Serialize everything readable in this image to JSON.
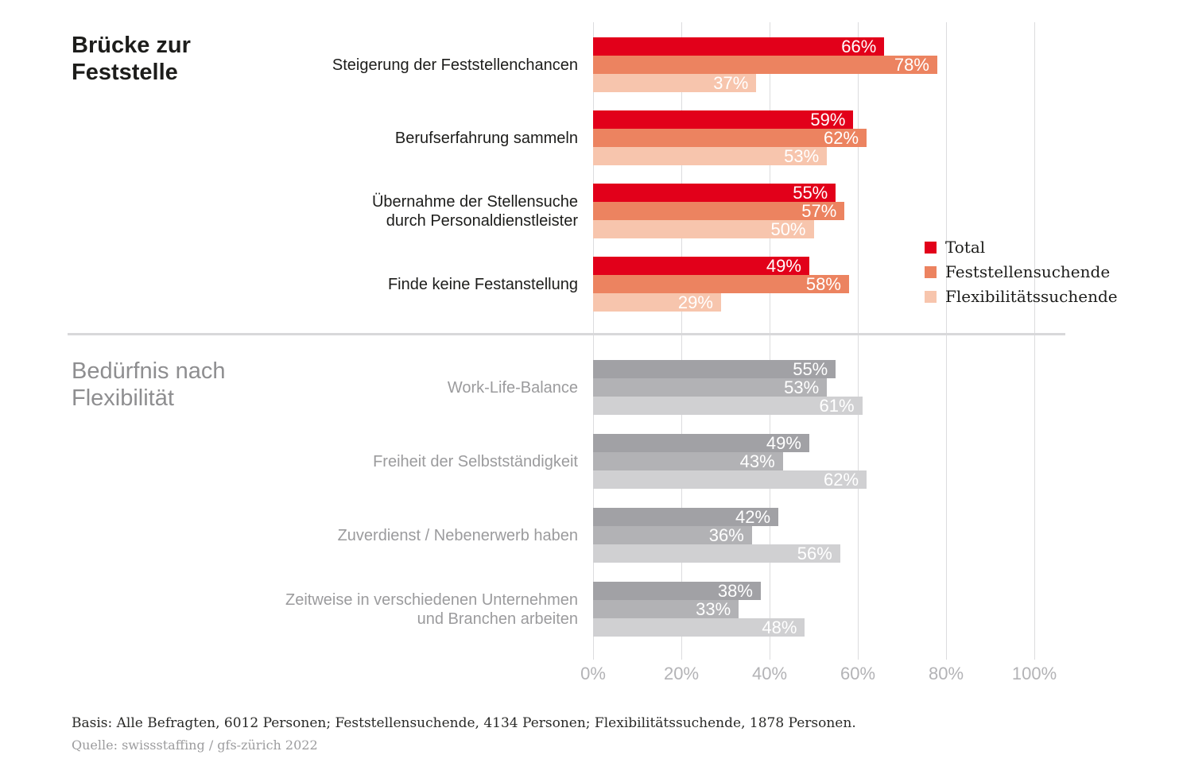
{
  "chart_data": {
    "type": "bar",
    "orientation": "horizontal",
    "value_suffix": "%",
    "x_axis": {
      "ticks": [
        "0%",
        "20%",
        "40%",
        "60%",
        "80%",
        "100%"
      ],
      "min": 0,
      "max": 100,
      "grid": true
    },
    "legend": {
      "position": "right",
      "items": [
        {
          "label": "Total",
          "color": "#e2001a"
        },
        {
          "label": "Feststellensuchende",
          "color": "#ec8360"
        },
        {
          "label": "Flexibilitätssuchende",
          "color": "#f7c5ad"
        }
      ]
    },
    "sections": [
      {
        "title": "Brücke zur\nFeststelle",
        "title_color": "#1d1d1b",
        "label_color": "#1d1d1b",
        "series_colors": [
          "#e2001a",
          "#ec8360",
          "#f7c5ad"
        ],
        "series_names": [
          "Total",
          "Feststellensuchende",
          "Flexibilitätssuchende"
        ],
        "rows": [
          {
            "category": "Steigerung der Feststellenchancen",
            "values": [
              66,
              78,
              37
            ]
          },
          {
            "category": "Berufserfahrung sammeln",
            "values": [
              59,
              62,
              53
            ]
          },
          {
            "category": "Übernahme der Stellensuche\ndurch Personaldienstleister",
            "values": [
              55,
              57,
              50
            ]
          },
          {
            "category": "Finde keine Festanstellung",
            "values": [
              49,
              58,
              29
            ]
          }
        ]
      },
      {
        "title": "Bedürfnis nach\nFlexibilität",
        "title_color": "#8e8e90",
        "label_color": "#9b9b9d",
        "series_colors": [
          "#a1a1a5",
          "#b2b2b5",
          "#d0d0d2"
        ],
        "series_names": [
          "Total",
          "Feststellensuchende",
          "Flexibilitätssuchende"
        ],
        "rows": [
          {
            "category": "Work-Life-Balance",
            "values": [
              55,
              53,
              61
            ]
          },
          {
            "category": "Freiheit der Selbstständigkeit",
            "values": [
              49,
              43,
              62
            ]
          },
          {
            "category": "Zuverdienst / Nebenerwerb haben",
            "values": [
              42,
              36,
              56
            ]
          },
          {
            "category": "Zeitweise in verschiedenen Unternehmen\nund Branchen arbeiten",
            "values": [
              38,
              33,
              48
            ]
          }
        ]
      }
    ]
  },
  "footer": {
    "basis": "Basis: Alle Befragten, 6012 Personen; Feststellensuchende, 4134 Personen; Flexibilitätssuchende, 1878 Personen.",
    "source": "Quelle: swissstaffing / gfs-zürich 2022"
  }
}
